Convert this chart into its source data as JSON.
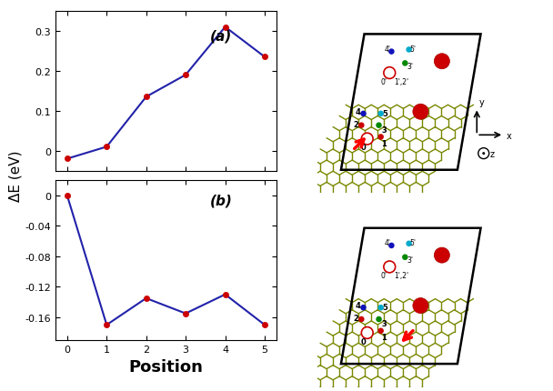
{
  "panel_a": {
    "x": [
      0,
      1,
      2,
      3,
      4,
      5
    ],
    "y": [
      -0.02,
      0.01,
      0.135,
      0.19,
      0.31,
      0.235
    ],
    "label": "(a)",
    "ylim": [
      -0.05,
      0.35
    ],
    "yticks": [
      0.0,
      0.1,
      0.2,
      0.3
    ],
    "ytick_labels": [
      "0",
      "0.1",
      "0.2",
      "0.3"
    ]
  },
  "panel_b": {
    "x": [
      0,
      1,
      2,
      3,
      4,
      5
    ],
    "y": [
      0.0,
      -0.17,
      -0.135,
      -0.155,
      -0.13,
      -0.17
    ],
    "label": "(b)",
    "ylim": [
      -0.19,
      0.02
    ],
    "yticks": [
      0.0,
      -0.04,
      -0.08,
      -0.12,
      -0.16
    ],
    "ytick_labels": [
      "0",
      "-0.04",
      "-0.08",
      "-0.12",
      "-0.16"
    ]
  },
  "line_color": "#2222aa",
  "marker_color": "#cc0000",
  "xlabel": "Position",
  "ylabel": "ΔE (eV)",
  "background_color": "#ffffff",
  "xticks": [
    0,
    1,
    2,
    3,
    4,
    5
  ],
  "graphene_bg": "#b8cc00",
  "graphene_bond": "#7a8800",
  "hex_inner": "#ffffff"
}
